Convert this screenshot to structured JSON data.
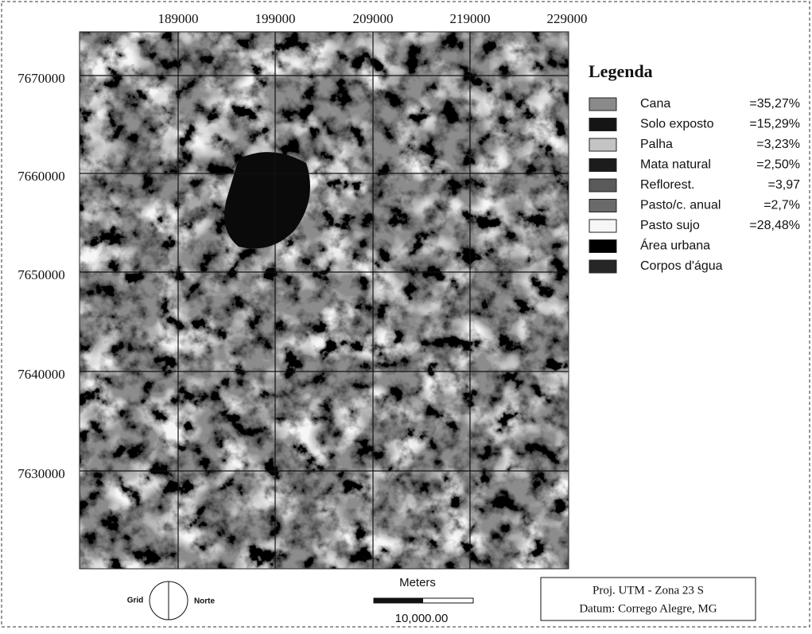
{
  "grid_labels": {
    "x": [
      189000,
      199000,
      209000,
      219000,
      229000
    ],
    "y": [
      7670000,
      7660000,
      7650000,
      7640000,
      7630000
    ]
  },
  "legend": {
    "title": "Legenda",
    "items": [
      {
        "name": "Cana",
        "value": "=35,27%"
      },
      {
        "name": "Solo exposto",
        "value": "=15,29%"
      },
      {
        "name": "Palha",
        "value": "=3,23%"
      },
      {
        "name": "Mata natural",
        "value": "=2,50%"
      },
      {
        "name": "Reflorest.",
        "value": "=3,97"
      },
      {
        "name": "Pasto/c. anual",
        "value": "=2,7%"
      },
      {
        "name": "Pasto sujo",
        "value": "=28,48%"
      },
      {
        "name": "Área urbana"
      },
      {
        "name": "Corpos d'água"
      }
    ]
  },
  "north_arrow": {
    "left": "Grid",
    "right": "Norte"
  },
  "scale_bar": {
    "unit": "Meters",
    "length": "10,000.00"
  },
  "projection": {
    "lines": [
      "Proj. UTM - Zona 23 S",
      "Datum: Corrego Alegre, MG"
    ]
  }
}
